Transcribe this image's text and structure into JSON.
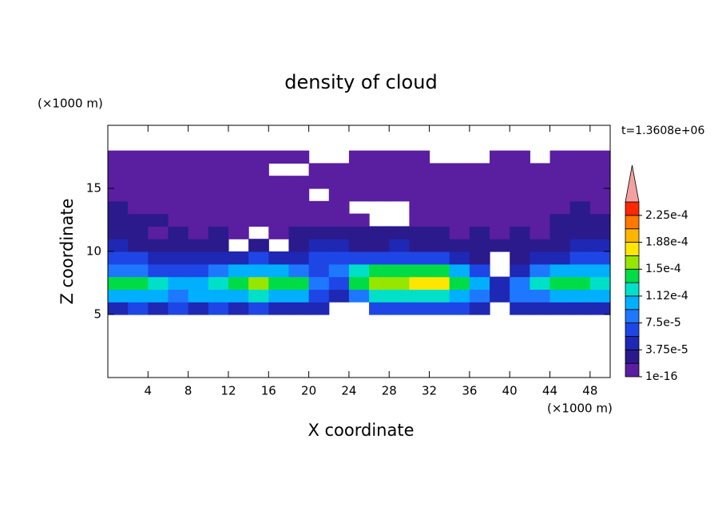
{
  "chart_data": {
    "type": "contour",
    "title": "density of cloud",
    "x_label": "X coordinate",
    "y_label": "Z coordinate",
    "x_unit": "(×1000 m)",
    "y_unit": "(×1000 m)",
    "annotation": "t=1.3608e+06",
    "xlim": [
      0,
      50
    ],
    "ylim": [
      0,
      20
    ],
    "xticks": [
      4,
      8,
      12,
      16,
      20,
      24,
      28,
      32,
      36,
      40,
      44,
      48
    ],
    "yticks": [
      5,
      10,
      15
    ],
    "x": [
      1,
      3,
      5,
      7,
      9,
      11,
      13,
      15,
      17,
      19,
      21,
      23,
      25,
      27,
      29,
      31,
      33,
      35,
      37,
      39,
      41,
      43,
      45,
      47,
      49
    ],
    "y": [
      5.5,
      6.5,
      7.5,
      8.5,
      9.5,
      10.5,
      11.5,
      12.5,
      13.5,
      14.5,
      15.5,
      16.5,
      17.5
    ],
    "z": [
      [
        4.7e-05,
        6.5e-05,
        4.7e-05,
        6.5e-05,
        4.7e-05,
        6.5e-05,
        4.7e-05,
        6.5e-05,
        4.7e-05,
        4.7e-05,
        4.7e-05,
        null,
        null,
        6.5e-05,
        6.5e-05,
        6.5e-05,
        6.5e-05,
        6.5e-05,
        4.7e-05,
        null,
        4.7e-05,
        4.7e-05,
        4.7e-05,
        4.7e-05,
        4.7e-05
      ],
      [
        0.000103,
        0.000103,
        0.000103,
        8.4e-05,
        0.000103,
        0.000103,
        0.000103,
        0.000122,
        0.000103,
        0.000103,
        6.5e-05,
        4.7e-05,
        8.4e-05,
        0.000122,
        0.000122,
        0.000122,
        0.000122,
        0.000103,
        8.4e-05,
        4.7e-05,
        8.4e-05,
        8.4e-05,
        0.000103,
        0.000103,
        0.000103
      ],
      [
        0.00014,
        0.00014,
        0.000122,
        0.000103,
        0.000103,
        0.000122,
        0.00014,
        0.00016,
        0.00014,
        0.00014,
        8.4e-05,
        6.5e-05,
        0.00014,
        0.00016,
        0.00016,
        0.000178,
        0.000178,
        0.00014,
        0.000103,
        4.7e-05,
        8.4e-05,
        0.000122,
        0.00014,
        0.00014,
        0.000122
      ],
      [
        8.4e-05,
        8.4e-05,
        6.5e-05,
        6.5e-05,
        6.5e-05,
        8.4e-05,
        0.000103,
        0.000103,
        0.000103,
        8.4e-05,
        6.5e-05,
        8.4e-05,
        0.000122,
        0.00014,
        0.00014,
        0.00014,
        0.00014,
        0.000103,
        6.5e-05,
        null,
        4.7e-05,
        8.4e-05,
        0.000103,
        0.000103,
        0.000103
      ],
      [
        6.5e-05,
        6.5e-05,
        4.7e-05,
        4.7e-05,
        4.7e-05,
        4.7e-05,
        4.7e-05,
        6.5e-05,
        4.7e-05,
        4.7e-05,
        6.5e-05,
        6.5e-05,
        6.5e-05,
        6.5e-05,
        6.5e-05,
        6.5e-05,
        6.5e-05,
        4.7e-05,
        2.8e-05,
        null,
        2.8e-05,
        4.7e-05,
        4.7e-05,
        6.5e-05,
        6.5e-05
      ],
      [
        4.7e-05,
        2.8e-05,
        2.8e-05,
        2.8e-05,
        2.8e-05,
        2.8e-05,
        null,
        2.8e-05,
        null,
        2.8e-05,
        4.7e-05,
        4.7e-05,
        2.8e-05,
        2.8e-05,
        4.7e-05,
        2.8e-05,
        2.8e-05,
        2.8e-05,
        2.8e-05,
        2.8e-05,
        2.8e-05,
        2.8e-05,
        2.8e-05,
        4.7e-05,
        4.7e-05
      ],
      [
        2.8e-05,
        2.8e-05,
        1e-05,
        2.8e-05,
        1e-05,
        2.8e-05,
        1e-05,
        null,
        1e-05,
        2.8e-05,
        2.8e-05,
        2.8e-05,
        2.8e-05,
        2.8e-05,
        2.8e-05,
        2.8e-05,
        2.8e-05,
        1e-05,
        2.8e-05,
        1e-05,
        2.8e-05,
        1e-05,
        2.8e-05,
        2.8e-05,
        2.8e-05
      ],
      [
        2.8e-05,
        2.8e-05,
        2.8e-05,
        1e-05,
        1e-05,
        1e-05,
        1e-05,
        1e-05,
        1e-05,
        1e-05,
        1e-05,
        1e-05,
        1e-05,
        null,
        null,
        1e-05,
        1e-05,
        1e-05,
        1e-05,
        1e-05,
        1e-05,
        1e-05,
        2.8e-05,
        2.8e-05,
        2.8e-05
      ],
      [
        2.8e-05,
        1e-05,
        1e-05,
        1e-05,
        1e-05,
        1e-05,
        1e-05,
        1e-05,
        1e-05,
        1e-05,
        1e-05,
        1e-05,
        null,
        null,
        null,
        1e-05,
        1e-05,
        1e-05,
        1e-05,
        1e-05,
        1e-05,
        1e-05,
        1e-05,
        2.8e-05,
        1e-05
      ],
      [
        1e-05,
        1e-05,
        1e-05,
        1e-05,
        1e-05,
        1e-05,
        1e-05,
        1e-05,
        1e-05,
        1e-05,
        null,
        1e-05,
        1e-05,
        1e-05,
        1e-05,
        1e-05,
        1e-05,
        1e-05,
        1e-05,
        1e-05,
        1e-05,
        1e-05,
        1e-05,
        1e-05,
        1e-05
      ],
      [
        1e-05,
        1e-05,
        1e-05,
        1e-05,
        1e-05,
        1e-05,
        1e-05,
        1e-05,
        1e-05,
        1e-05,
        1e-05,
        1e-05,
        1e-05,
        1e-05,
        1e-05,
        1e-05,
        1e-05,
        1e-05,
        1e-05,
        1e-05,
        1e-05,
        1e-05,
        1e-05,
        1e-05,
        1e-05
      ],
      [
        1e-05,
        1e-05,
        1e-05,
        1e-05,
        1e-05,
        1e-05,
        1e-05,
        1e-05,
        null,
        null,
        1e-05,
        1e-05,
        1e-05,
        1e-05,
        1e-05,
        1e-05,
        1e-05,
        1e-05,
        1e-05,
        1e-05,
        1e-05,
        1e-05,
        1e-05,
        1e-05,
        1e-05
      ],
      [
        1e-05,
        1e-05,
        1e-05,
        1e-05,
        1e-05,
        1e-05,
        1e-05,
        1e-05,
        1e-05,
        1e-05,
        null,
        null,
        1e-05,
        1e-05,
        1e-05,
        1e-05,
        null,
        null,
        null,
        1e-05,
        1e-05,
        null,
        1e-05,
        1e-05,
        1e-05
      ]
    ],
    "colorbar": {
      "lim": [
        1e-16,
        0.00024375
      ],
      "colors": [
        "#5a1ea0",
        "#2a1a8c",
        "#1e28b4",
        "#1e46e6",
        "#1e78ff",
        "#00b0ff",
        "#00e0c8",
        "#00dc46",
        "#96e600",
        "#ffe600",
        "#ffb400",
        "#ff7800",
        "#ff2800"
      ],
      "extend_color": "#f5a0a0",
      "ticks": [
        {
          "value": 1e-16,
          "label": "1e-16"
        },
        {
          "value": 3.75e-05,
          "label": "3.75e-5"
        },
        {
          "value": 7.5e-05,
          "label": "7.5e-5"
        },
        {
          "value": 0.0001125,
          "label": "1.12e-4"
        },
        {
          "value": 0.00015,
          "label": "1.5e-4"
        },
        {
          "value": 0.0001875,
          "label": "1.88e-4"
        },
        {
          "value": 0.000225,
          "label": "2.25e-4"
        }
      ]
    }
  }
}
